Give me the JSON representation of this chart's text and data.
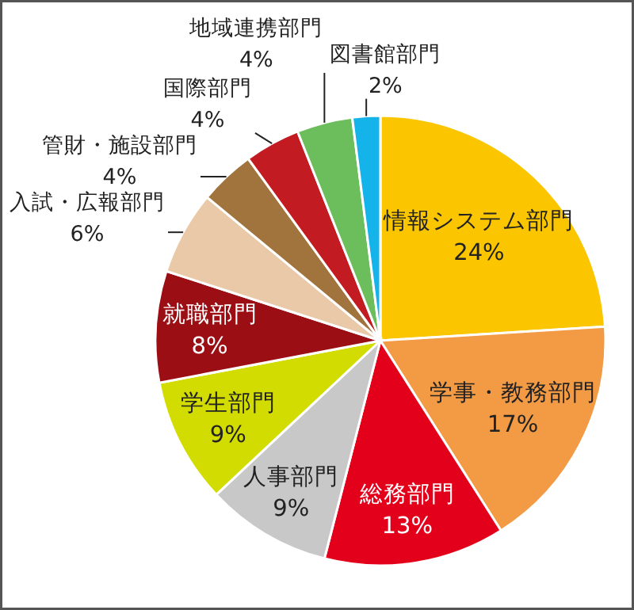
{
  "chart_data": {
    "type": "pie",
    "categories": [
      "情報システム部門",
      "学事・教務部門",
      "総務部門",
      "人事部門",
      "学生部門",
      "就職部門",
      "入試・広報部門",
      "管財・施設部門",
      "国際部門",
      "地域連携部門",
      "図書館部門"
    ],
    "values": [
      24,
      17,
      13,
      9,
      9,
      8,
      6,
      4,
      4,
      4,
      2
    ],
    "colors": [
      "#fbc600",
      "#f39a44",
      "#e3001b",
      "#c8c8c8",
      "#d2dc00",
      "#9b0e14",
      "#e9c9a8",
      "#a0743c",
      "#c31b22",
      "#6cbd5b",
      "#14b4eb"
    ],
    "value_labels": [
      "24%",
      "17%",
      "13%",
      "9%",
      "9%",
      "8%",
      "6%",
      "4%",
      "4%",
      "4%",
      "2%"
    ]
  }
}
